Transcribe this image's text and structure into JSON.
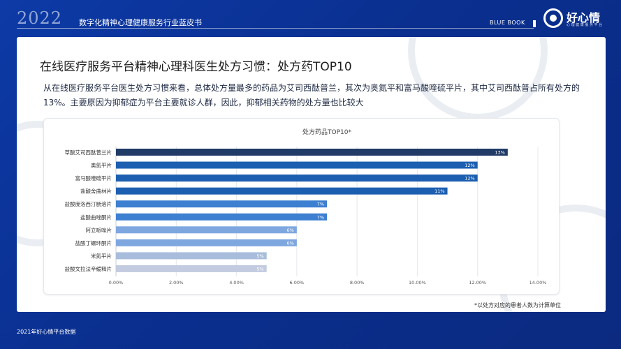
{
  "header": {
    "year": "2022",
    "report_title": "数字化精神心理健康服务行业蓝皮书",
    "blue_book": "BLUE BOOK",
    "logo_text": "好心情",
    "logo_sub": "心 理 健 康 服 务 平 台"
  },
  "main": {
    "heading": "在线医疗服务平台精神心理科医生处方习惯：处方药TOP10",
    "description": "从在线医疗服务平台医生处方习惯来看，总体处方量最多的药品为艾司西酞普兰，其次为奥氮平和富马酸喹硫平片，其中艾司西酞普占所有处方的13%。主要原因为抑郁症为平台主要就诊人群，因此，抑郁相关药物的处方量也比较大",
    "footnote": "*以处方对应的患者人数为计算单位"
  },
  "footer": {
    "source": "2021年好心情平台数据"
  },
  "chart_data": {
    "type": "bar",
    "orientation": "horizontal",
    "title": "处方药品TOP10*",
    "categories": [
      "草酸艾司西酞普兰片",
      "奥氮平片",
      "富马酸喹硫平片",
      "盐酸舍曲林片",
      "盐酸度洛西汀肠溶片",
      "盐酸曲唑酮片",
      "阿立哌唑片",
      "盐酸丁螺环酮片",
      "米氮平片",
      "盐酸文拉法辛缓释片"
    ],
    "values": [
      13,
      12,
      12,
      11,
      7,
      7,
      6,
      6,
      5,
      5
    ],
    "value_labels": [
      "13%",
      "12%",
      "12%",
      "11%",
      "7%",
      "7%",
      "6%",
      "6%",
      "5%",
      "5%"
    ],
    "colors": [
      "#1f3b66",
      "#1c5fb0",
      "#1c5fb0",
      "#1c5fb0",
      "#3d7fd0",
      "#3d7fd0",
      "#7ea7e0",
      "#7ea7e0",
      "#a8bddb",
      "#c3cbe0"
    ],
    "xticks": [
      0,
      2,
      4,
      6,
      8,
      10,
      12,
      14
    ],
    "xtick_labels": [
      "0.00%",
      "2.00%",
      "4.00%",
      "6.00%",
      "8.00%",
      "10.00%",
      "12.00%",
      "14.00%"
    ],
    "xlim": [
      0,
      14
    ],
    "grid": true
  }
}
